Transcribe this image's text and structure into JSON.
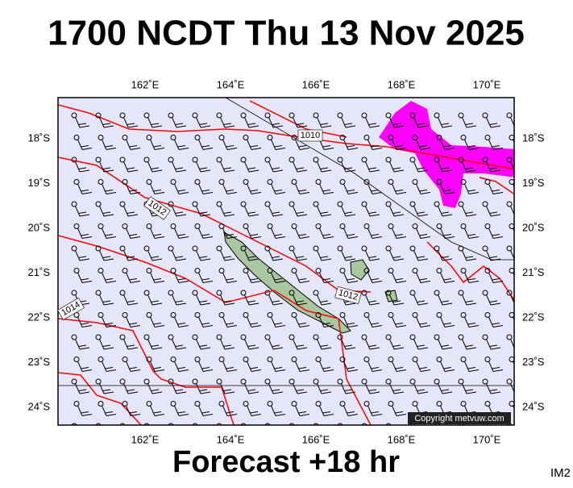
{
  "header": {
    "title": "1700 NCDT Thu 13 Nov 2025"
  },
  "map": {
    "lon_labels": [
      "162˚E",
      "164˚E",
      "166˚E",
      "168˚E",
      "170˚E"
    ],
    "lat_labels": [
      "18˚S",
      "19˚S",
      "20˚S",
      "21˚S",
      "22˚S",
      "23˚S",
      "24˚S"
    ],
    "isobar_labels": [
      "1010",
      "1012",
      "1014",
      "1012"
    ],
    "copyright": "Copyright metvuw.com"
  },
  "footer": {
    "forecast": "Forecast +18 hr",
    "code": "IM2"
  }
}
